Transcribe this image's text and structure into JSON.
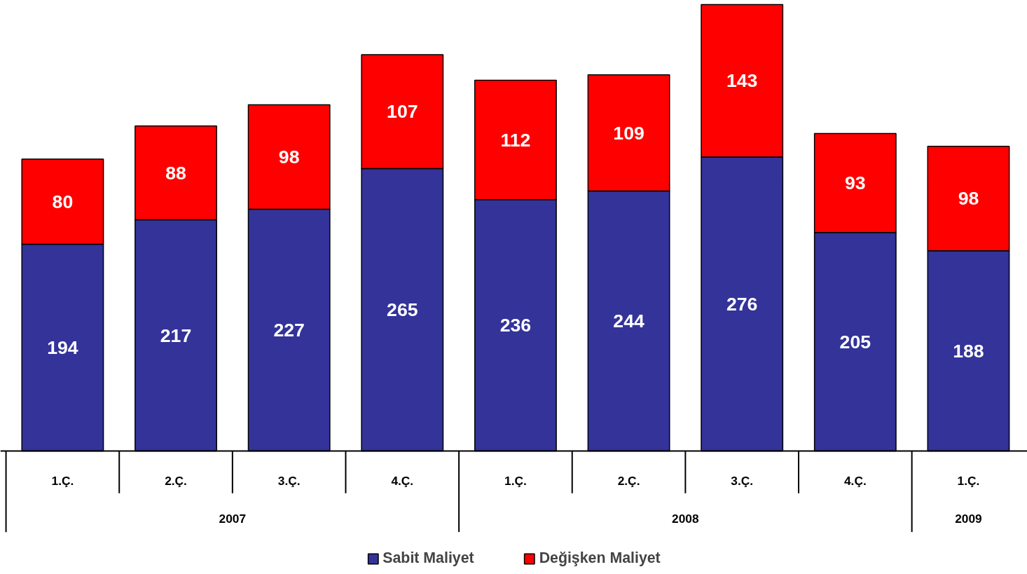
{
  "chart_data": {
    "type": "bar",
    "stacked": true,
    "data_labels": true,
    "legend": "bottom",
    "grid": false,
    "categories": [
      "1.Ç.",
      "2.Ç.",
      "3.Ç.",
      "4.Ç.",
      "1.Ç.",
      "2.Ç.",
      "3.Ç.",
      "4.Ç.",
      "1.Ç."
    ],
    "annotations": [
      "2007",
      "2008",
      "2009"
    ],
    "series": [
      {
        "name": "Sabit Maliyet",
        "color": "#333399",
        "values": [
          194,
          217,
          227,
          265,
          236,
          244,
          276,
          205,
          188
        ]
      },
      {
        "name": "Değişken Maliyet",
        "color": "#ff0000",
        "values": [
          80,
          88,
          98,
          107,
          112,
          109,
          143,
          93,
          98
        ]
      }
    ]
  }
}
